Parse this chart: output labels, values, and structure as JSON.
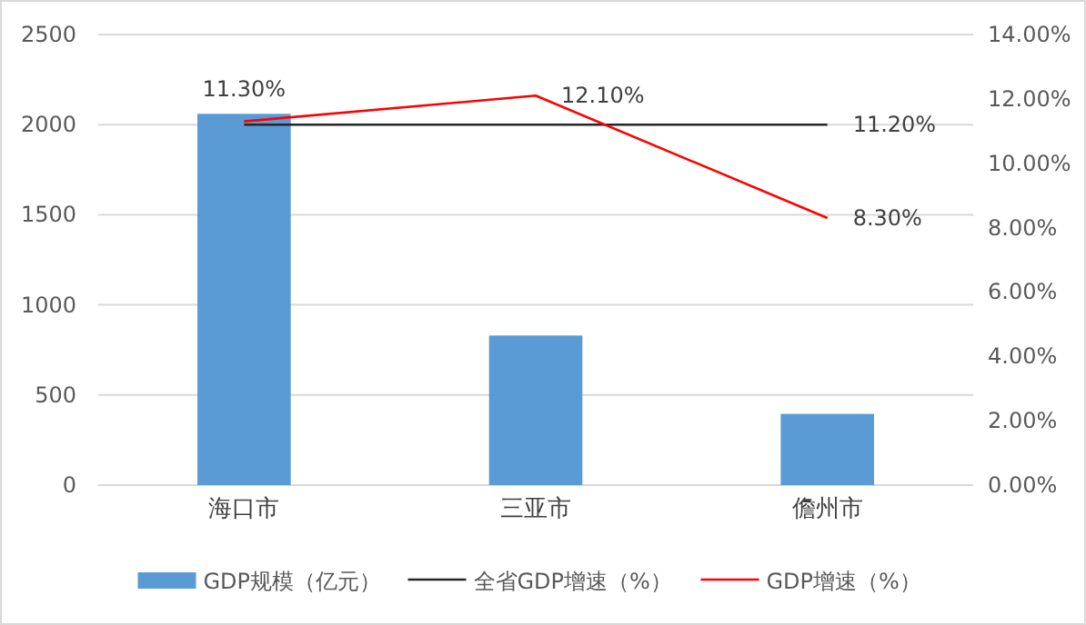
{
  "chart_data": {
    "type": "bar",
    "categories": [
      "海口市",
      "三亚市",
      "儋州市"
    ],
    "series": [
      {
        "name": "GDP规模（亿元）",
        "color": "#5b9bd5",
        "values": [
          2060,
          830,
          395
        ]
      },
      {
        "name": "全省GDP增速（%）",
        "type": "line",
        "axis": "y2",
        "color": "#262626",
        "values": [
          11.2,
          11.2,
          11.2
        ],
        "value_labels": [
          null,
          null,
          "11.20%"
        ]
      },
      {
        "name": "GDP增速（%）",
        "type": "line",
        "axis": "y2",
        "color": "#ff0000",
        "values": [
          11.3,
          12.1,
          8.3
        ],
        "value_labels": [
          "11.30%",
          "12.10%",
          "8.30%"
        ]
      }
    ],
    "ylim": [
      0,
      2500
    ],
    "yticks": [
      0,
      500,
      1000,
      1500,
      2000,
      2500
    ],
    "y2lim": [
      0,
      14
    ],
    "y2ticks": [
      {
        "value": 0,
        "label": "0.00%"
      },
      {
        "value": 2,
        "label": "2.00%"
      },
      {
        "value": 4,
        "label": "4.00%"
      },
      {
        "value": 6,
        "label": "6.00%"
      },
      {
        "value": 8,
        "label": "8.00%"
      },
      {
        "value": 10,
        "label": "10.00%"
      },
      {
        "value": 12,
        "label": "12.00%"
      },
      {
        "value": 14,
        "label": "14.00%"
      }
    ],
    "grid": "y",
    "legend": "bottom",
    "marker": "none",
    "line_style": "solid"
  }
}
